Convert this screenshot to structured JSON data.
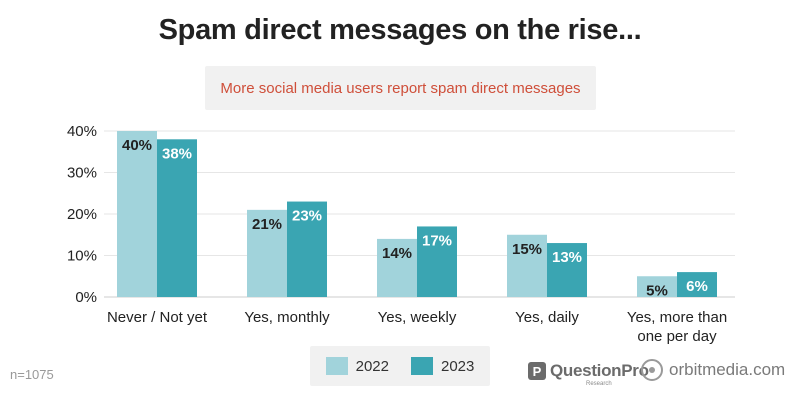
{
  "header": {
    "title": "Spam direct messages on the rise...",
    "subtitle": "More social media users report spam direct messages"
  },
  "footnote": "n=1075",
  "logos": {
    "questionpro_badge": "P",
    "questionpro": "QuestionPro",
    "questionpro_sub": "Research",
    "orbitmedia": "orbitmedia.com",
    "questionpro_icon": "questionpro-logo-icon",
    "orbitmedia_icon": "orbit-circle-icon"
  },
  "chart_data": {
    "type": "bar",
    "categories": [
      [
        "Never / Not yet"
      ],
      [
        "Yes, monthly"
      ],
      [
        "Yes, weekly"
      ],
      [
        "Yes, daily"
      ],
      [
        "Yes, more than",
        "one per day"
      ]
    ],
    "series": [
      {
        "name": "2022",
        "values": [
          40,
          21,
          14,
          15,
          5
        ],
        "labels": [
          "40%",
          "21%",
          "14%",
          "15%",
          "5%"
        ],
        "color": "#a1d3db"
      },
      {
        "name": "2023",
        "values": [
          38,
          23,
          17,
          13,
          6
        ],
        "labels": [
          "38%",
          "23%",
          "17%",
          "13%",
          "6%"
        ],
        "color": "#3aa5b2"
      }
    ],
    "ylim": [
      0,
      40
    ],
    "yticks": [
      "0%",
      "10%",
      "20%",
      "30%",
      "40%"
    ],
    "grid": true,
    "legend_position": "bottom"
  }
}
